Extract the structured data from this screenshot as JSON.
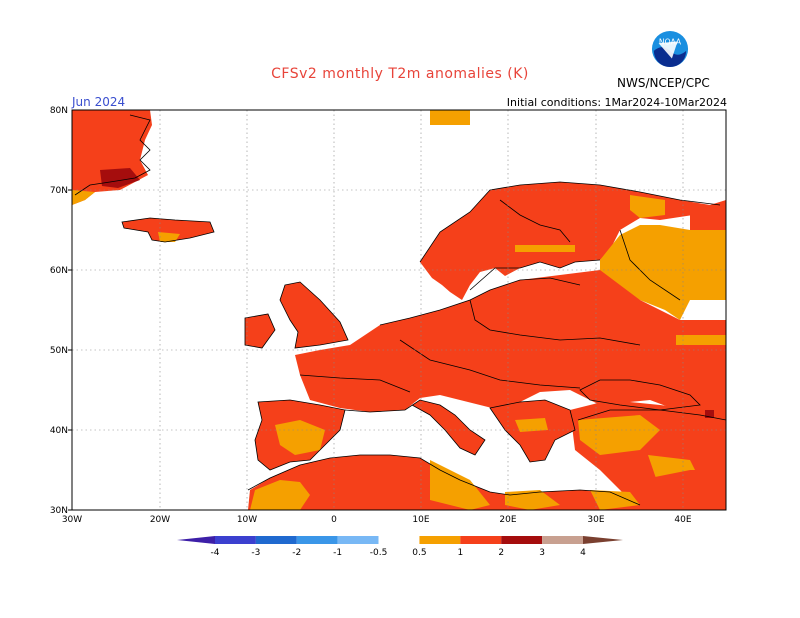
{
  "title": "CFSv2 monthly T2m anomalies (K)",
  "valid_month": "Jun 2024",
  "initial_conditions": "Initial conditions: 1Mar2024-10Mar2024",
  "agency": "NWS/NCEP/CPC",
  "logo_text": "NOAA",
  "map": {
    "lat_ticks": [
      "30N",
      "40N",
      "50N",
      "60N",
      "70N",
      "80N"
    ],
    "lon_ticks": [
      "30W",
      "20W",
      "10W",
      "0",
      "10E",
      "20E",
      "30E",
      "40E"
    ],
    "colors": {
      "c05_1": "#f5a000",
      "c1_2": "#f5401a",
      "c2_3": "#a50d0d",
      "c3_4": "#c8a090",
      "coast": "#000000"
    }
  },
  "colorbar": {
    "labels": [
      "-4",
      "-3",
      "-2",
      "-1",
      "-0.5",
      "0.5",
      "1",
      "2",
      "3",
      "4"
    ],
    "colors": [
      "#3d1fa8",
      "#3b40cf",
      "#1f69cf",
      "#3a96e8",
      "#78b8f5",
      "#ffffff",
      "#f5a000",
      "#f5401a",
      "#a50d0d",
      "#c8a090",
      "#7a4030"
    ]
  }
}
